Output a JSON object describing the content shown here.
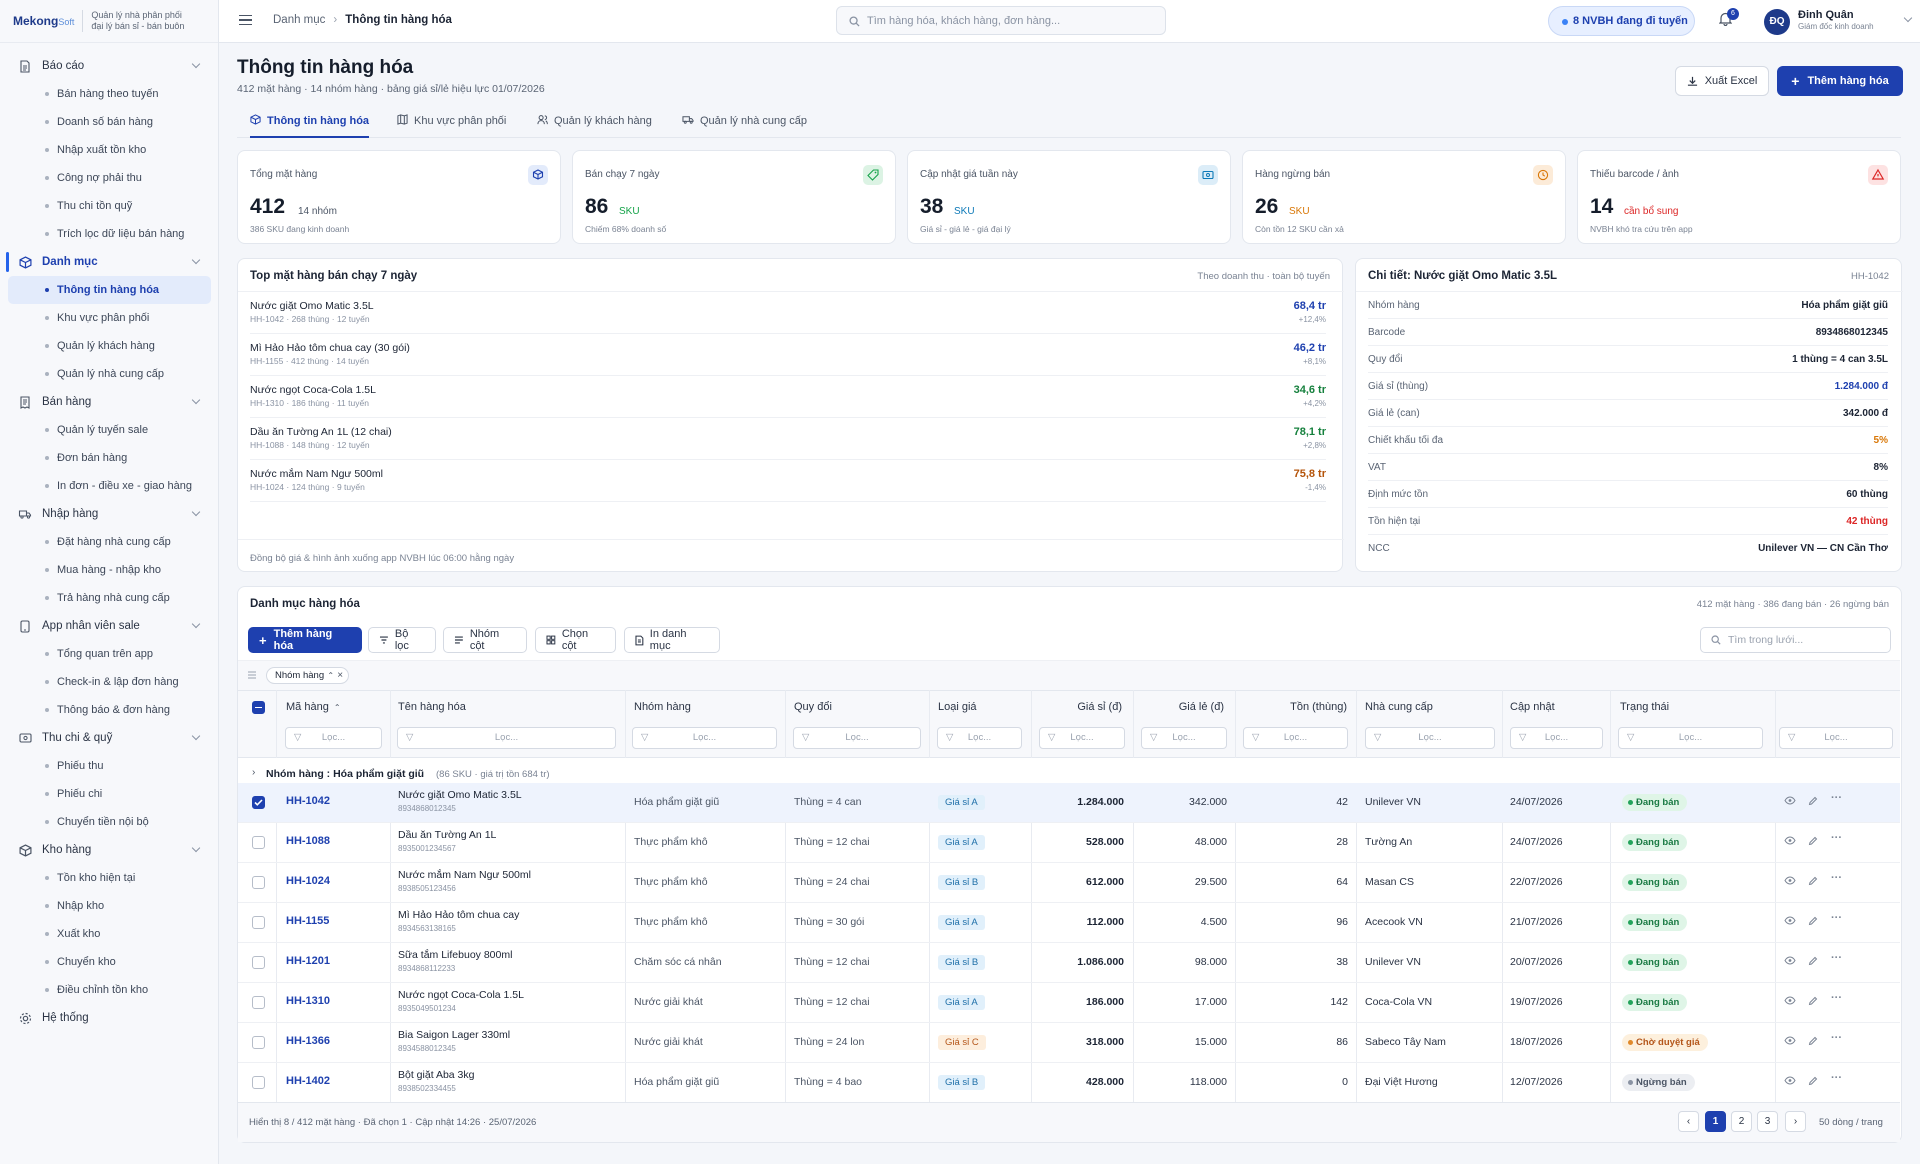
{
  "brand": {
    "logo": "Mekong",
    "logo_small": "Soft",
    "tagline1": "Quản lý nhà phân phối",
    "tagline2": "đại lý bán sỉ - bán buôn"
  },
  "sidebar": {
    "groups": [
      {
        "label": "Báo cáo",
        "icon": "report-icon",
        "items": [
          "Bán hàng theo tuyến",
          "Doanh số bán hàng",
          "Nhập xuất tồn kho",
          "Công nợ phải thu",
          "Thu chi tồn quỹ",
          "Trích lọc dữ liệu bán hàng"
        ]
      },
      {
        "label": "Danh mục",
        "icon": "box-icon",
        "items": [
          "Thông tin hàng hóa",
          "Khu vực phân phối",
          "Quản lý khách hàng",
          "Quản lý nhà cung cấp"
        ]
      },
      {
        "label": "Bán hàng",
        "icon": "receipt-icon",
        "items": [
          "Quản lý tuyến sale",
          "Đơn bán hàng",
          "In đơn - điều xe - giao hàng"
        ]
      },
      {
        "label": "Nhập hàng",
        "icon": "truck-icon",
        "items": [
          "Đặt hàng nhà cung cấp",
          "Mua hàng - nhập kho",
          "Trả hàng nhà cung cấp"
        ]
      },
      {
        "label": "App nhân viên sale",
        "icon": "phone-icon",
        "items": [
          "Tổng quan trên app",
          "Check-in & lập đơn hàng",
          "Thông báo & đơn hàng"
        ]
      },
      {
        "label": "Thu chi & quỹ",
        "icon": "wallet-icon",
        "items": [
          "Phiếu thu",
          "Phiếu chi",
          "Chuyển tiền nội bộ"
        ]
      },
      {
        "label": "Kho hàng",
        "icon": "warehouse-icon",
        "items": [
          "Tồn kho hiện tại",
          "Nhập kho",
          "Xuất kho",
          "Chuyển kho",
          "Điều chỉnh tồn kho"
        ]
      }
    ],
    "system": "Hệ thống"
  },
  "topbar": {
    "crumb1": "Danh mục",
    "crumb2": "Thông tin hàng hóa",
    "search_placeholder": "Tìm hàng hóa, khách hàng, đơn hàng...",
    "pill": "8 NVBH đang đi tuyến",
    "notif": "6",
    "avatar": "ĐQ",
    "user": "Đinh Quân",
    "role": "Giám đốc kinh doanh"
  },
  "page": {
    "title": "Thông tin hàng hóa",
    "subtitle": "412 mặt hàng · 14 nhóm hàng · bảng giá sỉ/lẻ hiệu lực 01/07/2026",
    "export": "Xuất Excel",
    "add": "Thêm hàng hóa",
    "tabs": [
      "Thông tin hàng hóa",
      "Khu vực phân phối",
      "Quản lý khách hàng",
      "Quản lý nhà cung cấp"
    ]
  },
  "kpis": [
    {
      "label": "Tổng mặt hàng",
      "value": "412",
      "unit": "14 nhóm",
      "note": "386 SKU đang kinh doanh",
      "color": "#1e40af"
    },
    {
      "label": "Bán chạy 7 ngày",
      "value": "86",
      "unit": "SKU",
      "note": "Chiếm 68% doanh số",
      "color": "#16a34a"
    },
    {
      "label": "Cập nhật giá tuần này",
      "value": "38",
      "unit": "SKU",
      "note": "Giá sỉ - giá lẻ - giá đại lý",
      "color": "#0e7ab8"
    },
    {
      "label": "Hàng ngừng bán",
      "value": "26",
      "unit": "SKU",
      "note": "Còn tồn 12 SKU cần xả",
      "color": "#d97706"
    },
    {
      "label": "Thiếu barcode / ảnh",
      "value": "14",
      "unit": "cần bổ sung",
      "note": "NVBH khó tra cứu trên app",
      "color": "#dc2626"
    }
  ],
  "top": {
    "title": "Top mặt hàng bán chạy 7 ngày",
    "hint": "Theo doanh thu · toàn bộ tuyến",
    "footer": "Đồng bộ giá & hình ảnh xuống app NVBH lúc 06:00 hằng ngày",
    "items": [
      {
        "name": "Nước giặt Omo Matic 3.5L",
        "meta": "HH-1042 · 268 thùng · 12 tuyến",
        "value": "68,4 tr",
        "delta": "+12,4%",
        "color": "#1e40af"
      },
      {
        "name": "Mì Hảo Hảo tôm chua cay (30 gói)",
        "meta": "HH-1155 · 412 thùng · 14 tuyến",
        "value": "46,2 tr",
        "delta": "+8,1%",
        "color": "#1e40af"
      },
      {
        "name": "Nước ngọt Coca-Cola 1.5L",
        "meta": "HH-1310 · 186 thùng · 11 tuyến",
        "value": "34,6 tr",
        "delta": "+4,2%",
        "color": "#15803d"
      },
      {
        "name": "Dầu ăn Tường An 1L (12 chai)",
        "meta": "HH-1088 · 148 thùng · 12 tuyến",
        "value": "78,1 tr",
        "delta": "+2,8%",
        "color": "#15803d"
      },
      {
        "name": "Nước mắm Nam Ngư 500ml",
        "meta": "HH-1024 · 124 thùng · 9 tuyến",
        "value": "75,8 tr",
        "delta": "-1,4%",
        "color": "#b45309"
      }
    ]
  },
  "detail": {
    "title": "Chi tiết: Nước giặt Omo Matic 3.5L",
    "code": "HH-1042",
    "rows": [
      {
        "k": "Nhóm hàng",
        "v": "Hóa phẩm giặt giũ",
        "color": "#1c2434"
      },
      {
        "k": "Barcode",
        "v": "8934868012345",
        "color": "#1c2434"
      },
      {
        "k": "Quy đổi",
        "v": "1 thùng = 4 can 3.5L",
        "color": "#1c2434"
      },
      {
        "k": "Giá sỉ (thùng)",
        "v": "1.284.000 đ",
        "color": "#1e40af"
      },
      {
        "k": "Giá lẻ (can)",
        "v": "342.000 đ",
        "color": "#1c2434"
      },
      {
        "k": "Chiết khấu tối đa",
        "v": "5%",
        "color": "#d97706"
      },
      {
        "k": "VAT",
        "v": "8%",
        "color": "#1c2434"
      },
      {
        "k": "Định mức tồn",
        "v": "60 thùng",
        "color": "#1c2434"
      },
      {
        "k": "Tồn hiện tại",
        "v": "42 thùng",
        "color": "#dc2626"
      },
      {
        "k": "NCC",
        "v": "Unilever VN — CN Cần Thơ",
        "color": "#1c2434"
      }
    ]
  },
  "grid": {
    "title": "Danh mục hàng hóa",
    "summary": "412 mặt hàng · 386 đang bán · 26 ngừng bán",
    "toolbar": {
      "add": "Thêm hàng hóa",
      "filter": "Bộ lọc",
      "group": "Nhóm cột",
      "cols": "Chọn cột",
      "print": "In danh mục",
      "search": "Tìm trong lưới..."
    },
    "chip": "Nhóm hàng",
    "headers": [
      "Mã hàng",
      "Tên hàng hóa",
      "Nhóm hàng",
      "Quy đổi",
      "Loại giá",
      "Giá sỉ (đ)",
      "Giá lẻ (đ)",
      "Tồn (thùng)",
      "Nhà cung cấp",
      "Cập nhật",
      "Trạng thái"
    ],
    "filter_ph": "Lọc...",
    "group_key": "Nhóm hàng",
    "group_val": "Hóa phẩm giặt giũ",
    "group_meta": "(86 SKU · giá trị tồn 684 tr)",
    "rows": [
      {
        "code": "HH-1042",
        "name": "Nước giặt Omo Matic 3.5L",
        "bar": "8934868012345",
        "group": "Hóa phẩm giặt giũ",
        "conv": "Thùng = 4 can",
        "tier": "Giá sỉ A",
        "tcls": "a",
        "ws": "1.284.000",
        "rt": "342.000",
        "stock": "42",
        "sup": "Unilever VN",
        "upd": "24/07/2026",
        "status": "Đang bán",
        "scls": "ok",
        "sel": true
      },
      {
        "code": "HH-1088",
        "name": "Dầu ăn Tường An 1L",
        "bar": "8935001234567",
        "group": "Thực phẩm khô",
        "conv": "Thùng = 12 chai",
        "tier": "Giá sỉ A",
        "tcls": "a",
        "ws": "528.000",
        "rt": "48.000",
        "stock": "28",
        "sup": "Tường An",
        "upd": "24/07/2026",
        "status": "Đang bán",
        "scls": "ok"
      },
      {
        "code": "HH-1024",
        "name": "Nước mắm Nam Ngư 500ml",
        "bar": "8938505123456",
        "group": "Thực phẩm khô",
        "conv": "Thùng = 24 chai",
        "tier": "Giá sỉ B",
        "tcls": "b",
        "ws": "612.000",
        "rt": "29.500",
        "stock": "64",
        "sup": "Masan CS",
        "upd": "22/07/2026",
        "status": "Đang bán",
        "scls": "ok"
      },
      {
        "code": "HH-1155",
        "name": "Mì Hảo Hảo tôm chua cay",
        "bar": "8934563138165",
        "group": "Thực phẩm khô",
        "conv": "Thùng = 30 gói",
        "tier": "Giá sỉ A",
        "tcls": "a",
        "ws": "112.000",
        "rt": "4.500",
        "stock": "96",
        "sup": "Acecook VN",
        "upd": "21/07/2026",
        "status": "Đang bán",
        "scls": "ok"
      },
      {
        "code": "HH-1201",
        "name": "Sữa tắm Lifebuoy 800ml",
        "bar": "8934868112233",
        "group": "Chăm sóc cá nhân",
        "conv": "Thùng = 12 chai",
        "tier": "Giá sỉ B",
        "tcls": "b",
        "ws": "1.086.000",
        "rt": "98.000",
        "stock": "38",
        "sup": "Unilever VN",
        "upd": "20/07/2026",
        "status": "Đang bán",
        "scls": "ok"
      },
      {
        "code": "HH-1310",
        "name": "Nước ngọt Coca-Cola 1.5L",
        "bar": "8935049501234",
        "group": "Nước giải khát",
        "conv": "Thùng = 12 chai",
        "tier": "Giá sỉ A",
        "tcls": "a",
        "ws": "186.000",
        "rt": "17.000",
        "stock": "142",
        "sup": "Coca-Cola VN",
        "upd": "19/07/2026",
        "status": "Đang bán",
        "scls": "ok"
      },
      {
        "code": "HH-1366",
        "name": "Bia Saigon Lager 330ml",
        "bar": "8934588012345",
        "group": "Nước giải khát",
        "conv": "Thùng = 24 lon",
        "tier": "Giá sỉ C",
        "tcls": "c",
        "ws": "318.000",
        "rt": "15.000",
        "stock": "86",
        "sup": "Sabeco Tây Nam",
        "upd": "18/07/2026",
        "status": "Chờ duyệt giá",
        "scls": "wait"
      },
      {
        "code": "HH-1402",
        "name": "Bột giặt Aba 3kg",
        "bar": "8938502334455",
        "group": "Hóa phẩm giặt giũ",
        "conv": "Thùng = 4 bao",
        "tier": "Giá sỉ B",
        "tcls": "b",
        "ws": "428.000",
        "rt": "118.000",
        "stock": "0",
        "sup": "Đại Việt Hương",
        "upd": "12/07/2026",
        "status": "Ngừng bán",
        "scls": "stop"
      }
    ],
    "footer": "Hiển thị 8 / 412 mặt hàng · Đã chọn 1 · Cập nhật 14:26 · 25/07/2026",
    "pages": [
      "1",
      "2",
      "3"
    ],
    "per_page": "50 dòng / trang"
  }
}
